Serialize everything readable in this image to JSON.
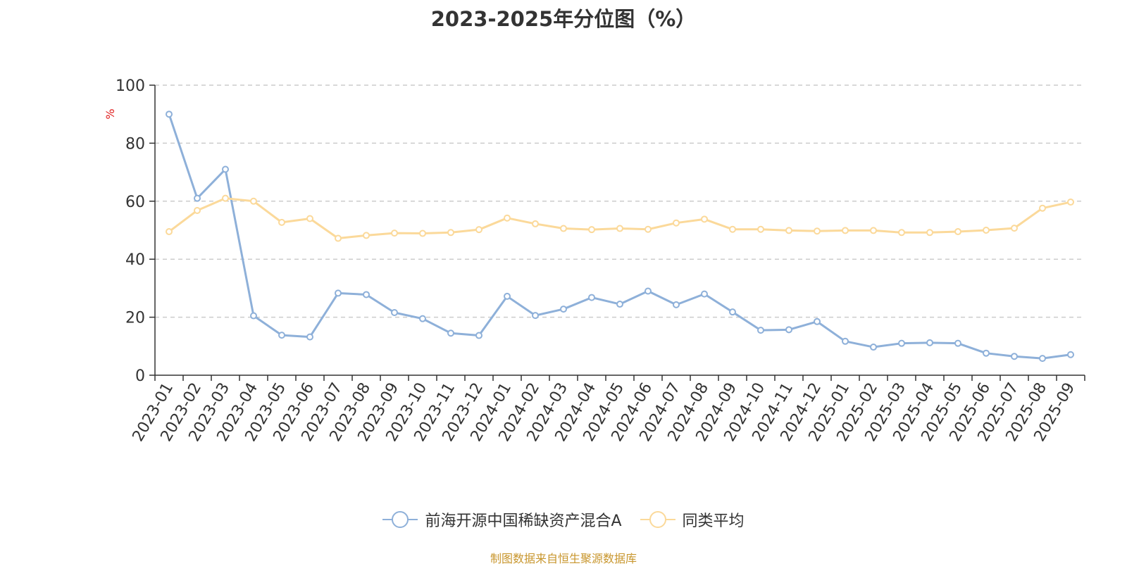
{
  "chart_data": {
    "type": "line",
    "title": "2023-2025年分位图（%）",
    "ylabel": "%",
    "ylim": [
      0,
      100
    ],
    "yticks": [
      0,
      20,
      40,
      60,
      80,
      100
    ],
    "grid": true,
    "legend_position": "bottom",
    "categories": [
      "2023-01",
      "2023-02",
      "2023-03",
      "2023-04",
      "2023-05",
      "2023-06",
      "2023-07",
      "2023-08",
      "2023-09",
      "2023-10",
      "2023-11",
      "2023-12",
      "2024-01",
      "2024-02",
      "2024-03",
      "2024-04",
      "2024-05",
      "2024-06",
      "2024-07",
      "2024-08",
      "2024-09",
      "2024-10",
      "2024-11",
      "2024-12",
      "2025-01",
      "2025-02",
      "2025-03",
      "2025-04",
      "2025-05",
      "2025-06",
      "2025-07",
      "2025-08",
      "2025-09"
    ],
    "series": [
      {
        "name": "前海开源中国稀缺资产混合A",
        "color": "#8eb0d9",
        "values": [
          90,
          61,
          71,
          20.5,
          13.8,
          13.2,
          28.3,
          27.8,
          21.6,
          19.5,
          14.5,
          13.7,
          27.2,
          20.6,
          22.8,
          26.8,
          24.5,
          29,
          24.3,
          28,
          21.8,
          15.5,
          15.7,
          18.5,
          11.7,
          9.7,
          11,
          11.2,
          11,
          7.6,
          6.5,
          5.8,
          7.1
        ]
      },
      {
        "name": "同类平均",
        "color": "#fbd99a",
        "values": [
          49.5,
          56.8,
          61,
          60,
          52.7,
          54,
          47.2,
          48.2,
          49,
          48.9,
          49.2,
          50.2,
          54.2,
          52.2,
          50.6,
          50.2,
          50.6,
          50.3,
          52.5,
          53.8,
          50.3,
          50.3,
          49.9,
          49.7,
          49.9,
          49.9,
          49.2,
          49.2,
          49.5,
          50,
          50.7,
          57.6,
          59.7
        ]
      }
    ]
  },
  "source": "制图数据来自恒生聚源数据库"
}
